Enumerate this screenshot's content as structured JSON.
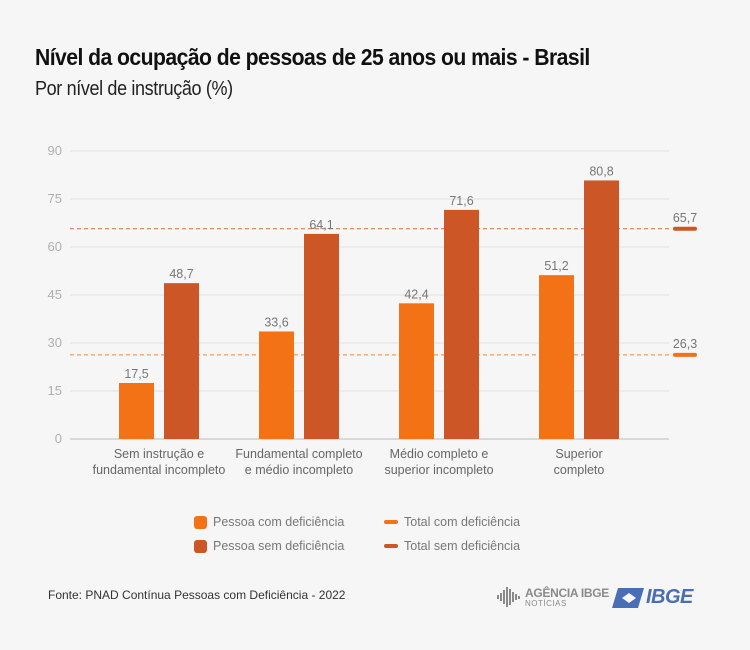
{
  "header": {
    "title": "Nível da ocupação de pessoas de 25 anos ou mais - Brasil",
    "subtitle": "Por nível de instrução (%)"
  },
  "chart_data": {
    "type": "bar",
    "title": "Nível da ocupação de pessoas de 25 anos ou mais - Brasil",
    "subtitle": "Por nível de instrução (%)",
    "xlabel": "",
    "ylabel": "",
    "ylim": [
      0,
      90
    ],
    "yticks": [
      0,
      15,
      30,
      45,
      60,
      75,
      90
    ],
    "grid": true,
    "categories": [
      [
        "Sem instrução e",
        "fundamental incompleto"
      ],
      [
        "Fundamental completo",
        "e médio incompleto"
      ],
      [
        "Médio completo e",
        "superior incompleto"
      ],
      [
        "Superior",
        "completo"
      ]
    ],
    "series": [
      {
        "name": "Pessoa com deficiência",
        "color": "#f47216",
        "values": [
          17.5,
          33.6,
          42.4,
          51.2
        ],
        "labels": [
          "17,5",
          "33,6",
          "42,4",
          "51,2"
        ]
      },
      {
        "name": "Pessoa sem deficiência",
        "color": "#cc5626",
        "values": [
          48.7,
          64.1,
          71.6,
          80.8
        ],
        "labels": [
          "48,7",
          "64,1",
          "71,6",
          "80,8"
        ]
      }
    ],
    "reference_lines": [
      {
        "name": "Total com deficiência",
        "value": 26.3,
        "label": "26,3",
        "color": "#f47216"
      },
      {
        "name": "Total sem deficiência",
        "value": 65.7,
        "label": "65,7",
        "color": "#cc5626"
      }
    ],
    "legend_position": "bottom-center"
  },
  "legend": {
    "items": [
      {
        "label": "Pessoa com deficiência",
        "color": "#f47216"
      },
      {
        "label": "Pessoa sem deficiência",
        "color": "#cc5626"
      },
      {
        "label": "Total com deficiência",
        "color": "#f47216"
      },
      {
        "label": "Total sem deficiência",
        "color": "#cc5626"
      }
    ]
  },
  "footer": {
    "source": "Fonte: PNAD Contínua Pessoas com Deficiência - 2022",
    "agencia_line1": "AGÊNCIA IBGE",
    "agencia_line2": "NOTÍCIAS",
    "ibge": "IBGE"
  }
}
